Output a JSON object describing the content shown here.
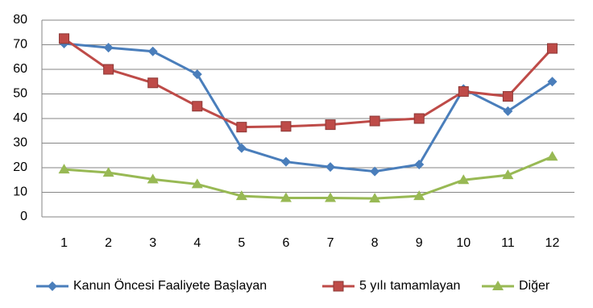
{
  "chart_data": {
    "type": "line",
    "categories": [
      "1",
      "2",
      "3",
      "4",
      "5",
      "6",
      "7",
      "8",
      "9",
      "10",
      "11",
      "12"
    ],
    "series": [
      {
        "name": "Kanun Öncesi Faaliyete Başlayan",
        "color": "#4a7ebb",
        "marker": "diamond",
        "values": [
          70.5,
          68.8,
          67.3,
          58,
          28,
          22.4,
          20.3,
          18.5,
          21.3,
          52,
          43,
          55
        ]
      },
      {
        "name": "5 yılı tamamlayan",
        "color": "#be4b48",
        "marker": "square",
        "values": [
          72.5,
          60,
          54.5,
          45,
          36.5,
          36.8,
          37.5,
          39,
          40,
          51,
          49,
          68.5
        ]
      },
      {
        "name": "Diğer",
        "color": "#98b954",
        "marker": "triangle",
        "values": [
          19.3,
          18,
          15.3,
          13.3,
          8.5,
          7.7,
          7.7,
          7.5,
          8.5,
          15,
          17,
          24.5
        ]
      }
    ],
    "ylim": [
      0,
      80
    ],
    "yticks": [
      0,
      10,
      20,
      30,
      40,
      50,
      60,
      70,
      80
    ],
    "grid": true,
    "legend": "bottom"
  }
}
